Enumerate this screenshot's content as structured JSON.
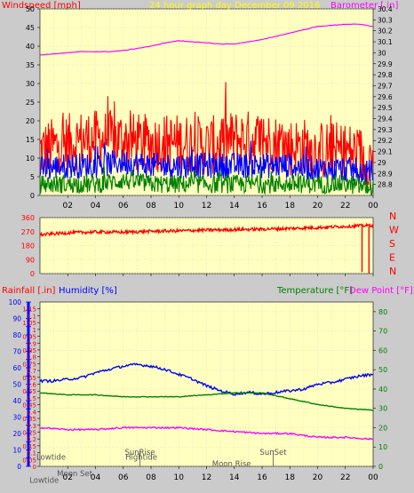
{
  "header": {
    "title": "24 hour graph day    December 09 2016",
    "left_label": "Windspeed [mph]",
    "right_label": "Barometer [.in]"
  },
  "colors": {
    "plot_bg": "#ffffc0",
    "axis_red": "#ff0000",
    "axis_magenta": "#ff00ff",
    "axis_blue": "#0000ff",
    "axis_green": "#008000",
    "gust": "#ff0000",
    "avg": "#0000ff",
    "low": "#008000",
    "barometer": "#ff00ff",
    "humidity": "#0000ff",
    "temperature": "#008000",
    "dewpoint": "#ff00ff",
    "direction": "#ff0000",
    "title_yellow": "#ffff00"
  },
  "x_ticks": [
    "02",
    "04",
    "06",
    "08",
    "10",
    "12",
    "14",
    "16",
    "18",
    "20",
    "22",
    "00"
  ],
  "chart_data": [
    {
      "type": "line",
      "name": "wind_barometer",
      "x_range": [
        0,
        24
      ],
      "ylim_left": [
        0,
        50
      ],
      "yticks_left": [
        0,
        5,
        10,
        15,
        20,
        25,
        30,
        35,
        40,
        45,
        50
      ],
      "ylim_right": [
        28.7,
        30.4
      ],
      "yticks_right": [
        "28.8",
        "28.9",
        "29",
        "29.1",
        "29.2",
        "29.3",
        "29.4",
        "29.5",
        "29.6",
        "29.7",
        "29.8",
        "29.9",
        "30",
        "30.1",
        "30.2",
        "30.3",
        "30.4"
      ],
      "series": [
        {
          "key": "gust",
          "color": "#ff0000",
          "axis": "left",
          "x": [
            0,
            1,
            2,
            3,
            4,
            5,
            6,
            7,
            8,
            9,
            10,
            11,
            12,
            13,
            14,
            15,
            16,
            17,
            18,
            19,
            20,
            21,
            22,
            23,
            23.7,
            24
          ],
          "mean": [
            12,
            13,
            14,
            15,
            15,
            15,
            15,
            14,
            14,
            14,
            14,
            14,
            13,
            14,
            15,
            15,
            15,
            14,
            13,
            13,
            12,
            12,
            12,
            11,
            10,
            9
          ],
          "spread": 8
        },
        {
          "key": "avg",
          "color": "#0000ff",
          "axis": "left",
          "x": [
            0,
            2,
            4,
            6,
            8,
            10,
            12,
            14,
            16,
            18,
            20,
            22,
            24
          ],
          "mean": [
            7,
            8,
            8,
            9,
            8,
            8,
            8,
            8,
            8,
            8,
            7,
            7,
            6
          ],
          "spread": 3.5
        },
        {
          "key": "low",
          "color": "#008000",
          "axis": "left",
          "x": [
            0,
            2,
            4,
            6,
            8,
            10,
            12,
            14,
            16,
            18,
            20,
            22,
            24
          ],
          "mean": [
            3,
            3,
            3,
            4,
            3,
            3,
            3,
            3,
            3,
            3,
            3,
            3,
            2
          ],
          "spread": 2.5
        },
        {
          "key": "barometer",
          "color": "#ff00ff",
          "axis": "right",
          "x": [
            0,
            1,
            2,
            3,
            4,
            5,
            6,
            7,
            8,
            9,
            10,
            11,
            12,
            13,
            14,
            15,
            16,
            17,
            18,
            19,
            20,
            21,
            22,
            23,
            24
          ],
          "values": [
            29.98,
            29.99,
            30.0,
            30.01,
            30.01,
            30.01,
            30.02,
            30.04,
            30.06,
            30.09,
            30.11,
            30.1,
            30.09,
            30.08,
            30.08,
            30.1,
            30.12,
            30.15,
            30.18,
            30.21,
            30.24,
            30.25,
            30.26,
            30.26,
            30.24
          ]
        }
      ]
    },
    {
      "type": "line",
      "name": "wind_direction",
      "x_range": [
        0,
        24
      ],
      "ylim": [
        0,
        360
      ],
      "yticks": [
        0,
        90,
        180,
        270,
        360
      ],
      "right_labels": [
        "N",
        "W",
        "S",
        "E",
        "N"
      ],
      "series": [
        {
          "key": "direction",
          "color": "#ff0000",
          "x": [
            0,
            2,
            4,
            6,
            8,
            10,
            12,
            14,
            16,
            18,
            20,
            22,
            24
          ],
          "mean": [
            250,
            262,
            268,
            266,
            272,
            275,
            280,
            283,
            286,
            290,
            296,
            304,
            310
          ],
          "spread": 20
        }
      ]
    },
    {
      "type": "line",
      "name": "rain_humidity_temperature",
      "x_range": [
        0,
        24
      ],
      "titles": {
        "rainfall": "Rainfall [.in]",
        "humidity": "Humidity [%]",
        "temperature": "Temperature [°F]",
        "dewpoint": "Dew Point [°F]"
      },
      "ylim_rain": [
        0,
        1.2
      ],
      "yticks_rain": [
        "0",
        "0.05",
        "0.1",
        "0.15",
        "0.2",
        "0.25",
        "0.3",
        "0.35",
        "0.4",
        "0.45",
        "0.5",
        "0.55",
        "0.6",
        "0.65",
        "0.7",
        "0.75",
        "0.8",
        "0.85",
        "0.9",
        "0.95",
        "1",
        "1.05",
        "1.1",
        "1.15"
      ],
      "ylim_humidity": [
        0,
        100
      ],
      "yticks_humidity": [
        0,
        10,
        20,
        30,
        40,
        50,
        60,
        70,
        80,
        90,
        100
      ],
      "ylim_temp": [
        0,
        85
      ],
      "yticks_temp": [
        0,
        10,
        20,
        30,
        40,
        50,
        60,
        70,
        80
      ],
      "series": [
        {
          "key": "humidity",
          "color": "#0000ff",
          "x": [
            0,
            1,
            2,
            3,
            4,
            5,
            6,
            7,
            8,
            9,
            10,
            11,
            12,
            13,
            14,
            15,
            16,
            17,
            18,
            19,
            20,
            21,
            22,
            23,
            24
          ],
          "values": [
            52,
            52,
            53,
            54,
            57,
            59,
            61,
            62,
            61,
            59,
            56,
            53,
            49,
            46,
            44,
            45,
            44,
            45,
            46,
            47,
            50,
            51,
            53,
            55,
            56
          ]
        },
        {
          "key": "temperature",
          "color": "#008000",
          "x": [
            0,
            2,
            4,
            6,
            8,
            10,
            12,
            14,
            16,
            18,
            20,
            22,
            24
          ],
          "values": [
            38,
            37,
            37,
            36,
            36,
            36,
            37,
            38,
            38,
            35,
            32,
            30,
            29
          ]
        },
        {
          "key": "dewpoint",
          "color": "#ff00ff",
          "x": [
            0,
            2,
            4,
            6,
            8,
            10,
            12,
            14,
            16,
            18,
            20,
            22,
            24
          ],
          "values": [
            20,
            19,
            19,
            20,
            20,
            20,
            19,
            18,
            17,
            17,
            15,
            15,
            14
          ]
        }
      ],
      "annotations": [
        {
          "text": "Lowtide",
          "x": 0.8,
          "y_frac": 0.04
        },
        {
          "text": "Moon Set",
          "x": 2.5,
          "y_frac": -0.06
        },
        {
          "text": "SunRise",
          "x": 7.2,
          "y_frac": 0.07
        },
        {
          "text": "Hightide",
          "x": 7.3,
          "y_frac": 0.04
        },
        {
          "text": "Moon Rise",
          "x": 13.8,
          "y_frac": 0.0
        },
        {
          "text": "SunSet",
          "x": 16.8,
          "y_frac": 0.07
        },
        {
          "text": "Lowtide",
          "x": 0.3,
          "y_frac": -0.1
        }
      ]
    }
  ]
}
